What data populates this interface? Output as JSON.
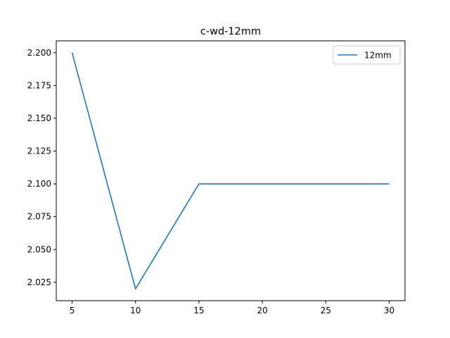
{
  "chart_data": {
    "type": "line",
    "title": "c-wd-12mm",
    "xlabel": "",
    "ylabel": "",
    "x": [
      5,
      10,
      15,
      20,
      25,
      30
    ],
    "series": [
      {
        "name": "12mm",
        "values": [
          2.2,
          2.02,
          2.1,
          2.1,
          2.1,
          2.1
        ],
        "color": "#1f77b4"
      }
    ],
    "xlim": [
      3.75,
      31.25
    ],
    "ylim": [
      2.011,
      2.209
    ],
    "xticks": [
      5,
      10,
      15,
      20,
      25,
      30
    ],
    "xtick_labels": [
      "5",
      "10",
      "15",
      "20",
      "25",
      "30"
    ],
    "yticks": [
      2.025,
      2.05,
      2.075,
      2.1,
      2.125,
      2.15,
      2.175,
      2.2
    ],
    "ytick_labels": [
      "2.025",
      "2.050",
      "2.075",
      "2.100",
      "2.125",
      "2.150",
      "2.175",
      "2.200"
    ],
    "grid": false,
    "legend_position": "top-right"
  }
}
